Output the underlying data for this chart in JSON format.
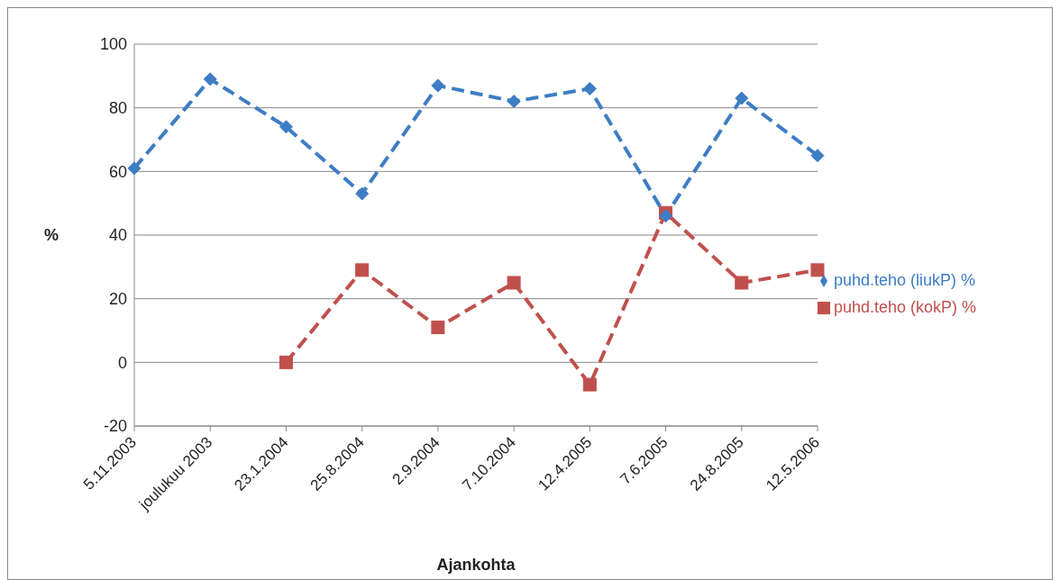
{
  "chart_data": {
    "type": "line",
    "xlabel": "Ajankohta",
    "ylabel": "%",
    "categories": [
      "5.11.2003",
      "joulukuu 2003",
      "23.1.2004",
      "25.8.2004",
      "2.9.2004",
      "7.10.2004",
      "12.4.2005",
      "7.6.2005",
      "24.8.2005",
      "12.5.2006"
    ],
    "series": [
      {
        "name": "puhd.teho (liukP) %",
        "color": "#3d7dc4",
        "marker": "diamond",
        "values": [
          61,
          89,
          74,
          53,
          87,
          82,
          86,
          46,
          83,
          65
        ]
      },
      {
        "name": "puhd.teho (kokP) %",
        "color": "#c0504d",
        "marker": "square",
        "values": [
          null,
          null,
          0,
          29,
          11,
          25,
          -7,
          47,
          25,
          29
        ]
      }
    ],
    "ylim": [
      -20,
      100
    ],
    "yticks": [
      -20,
      0,
      20,
      40,
      60,
      80,
      100
    ],
    "grid": "y",
    "legend": "right",
    "line_style": "dashed"
  }
}
